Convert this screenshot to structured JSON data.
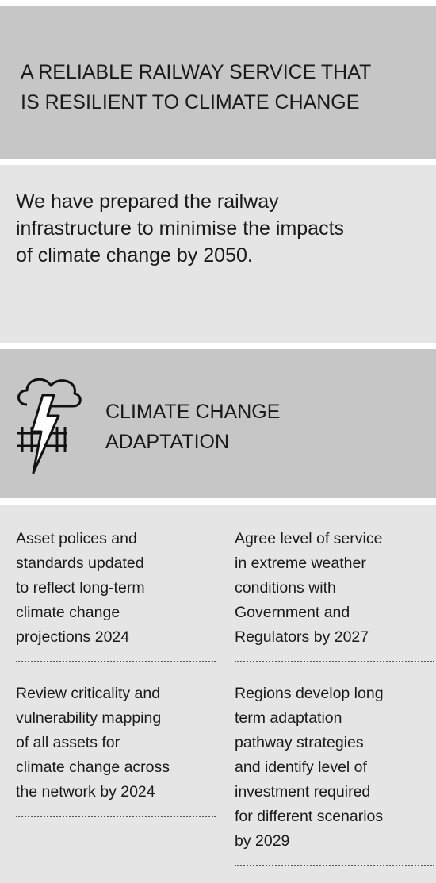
{
  "header": {
    "title": [
      "A RELIABLE RAILWAY SERVICE THAT",
      "IS RESILIENT TO CLIMATE CHANGE"
    ]
  },
  "intro": {
    "text": [
      "We have prepared the railway",
      "infrastructure to minimise the impacts",
      "of climate change by 2050."
    ]
  },
  "section": {
    "heading": [
      "CLIMATE CHANGE",
      "ADAPTATION"
    ]
  },
  "columns": [
    [
      [
        "Asset polices and",
        "standards updated",
        "to reflect long-term",
        "climate change",
        "projections 2024"
      ],
      [
        "Review criticality and",
        "vulnerability mapping",
        "of all assets for",
        "climate change across",
        "the network by 2024"
      ]
    ],
    [
      [
        "Agree level of service",
        "in extreme weather",
        "conditions with",
        "Government and",
        "Regulators by 2027"
      ],
      [
        "Regions develop long",
        "term adaptation",
        "pathway strategies",
        "and identify level of",
        "investment required",
        "for different scenarios",
        "by 2029"
      ]
    ]
  ]
}
